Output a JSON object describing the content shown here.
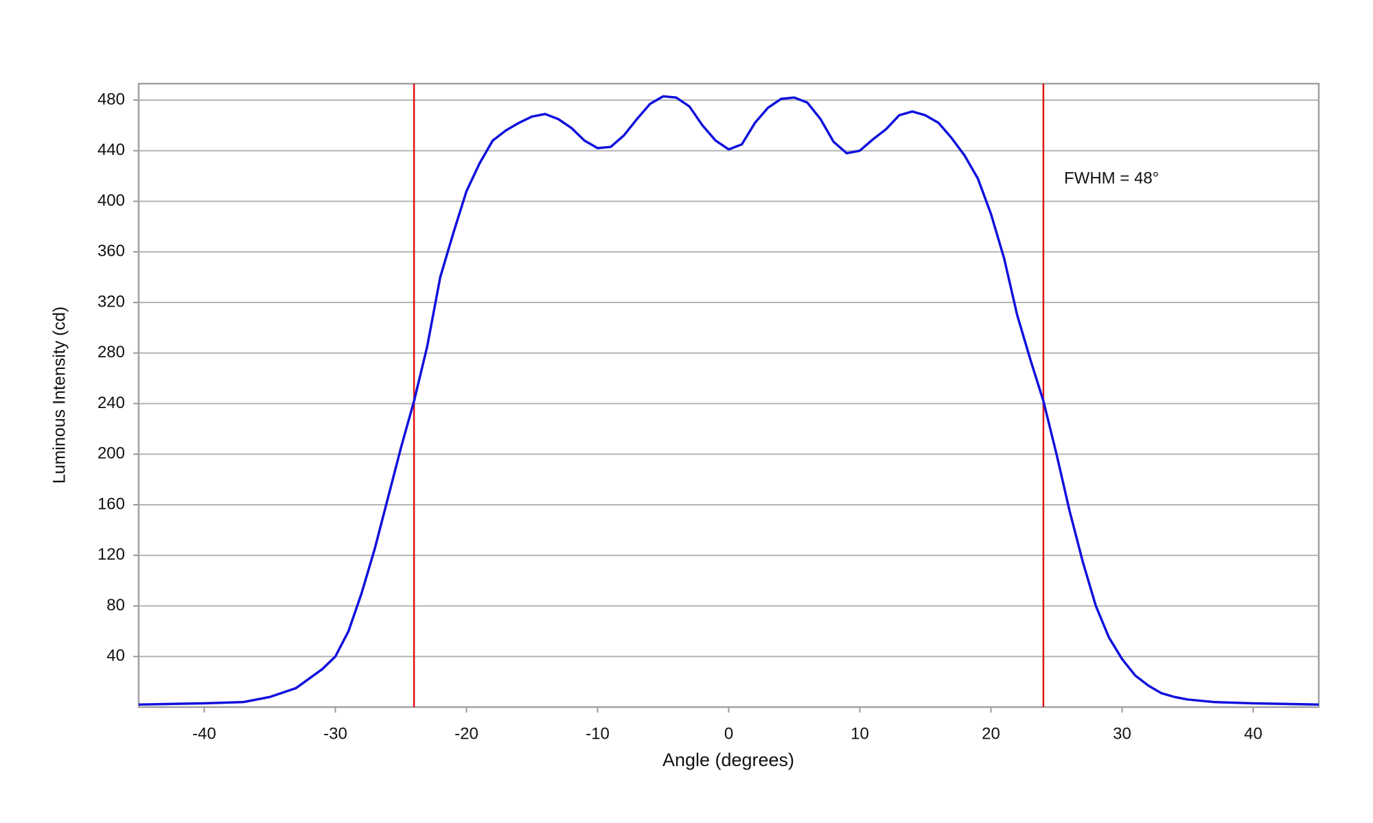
{
  "chart_data": {
    "type": "line",
    "x_label": "Angle (degrees)",
    "y_label": "Luminous Intensity (cd)",
    "x": [
      -45,
      -40,
      -37,
      -35,
      -33,
      -31,
      -30,
      -29,
      -28,
      -27,
      -26,
      -25,
      -24,
      -23,
      -22,
      -21,
      -20,
      -19,
      -18,
      -17,
      -16,
      -15,
      -14,
      -13,
      -12,
      -11,
      -10,
      -9,
      -8,
      -7,
      -6,
      -5,
      -4,
      -3,
      -2,
      -1,
      0,
      1,
      2,
      3,
      4,
      5,
      6,
      7,
      8,
      9,
      10,
      11,
      12,
      13,
      14,
      15,
      16,
      17,
      18,
      19,
      20,
      21,
      22,
      23,
      24,
      25,
      26,
      27,
      28,
      29,
      30,
      31,
      32,
      33,
      34,
      35,
      37,
      40,
      45
    ],
    "series": [
      {
        "color": "#1010dd",
        "values": [
          2,
          3,
          4,
          8,
          15,
          30,
          40,
          60,
          90,
          125,
          165,
          205,
          242,
          285,
          340,
          375,
          408,
          430,
          448,
          456,
          462,
          467,
          469,
          465,
          458,
          448,
          442,
          443,
          452,
          465,
          477,
          483,
          482,
          475,
          460,
          448,
          441,
          445,
          462,
          474,
          481,
          482,
          478,
          465,
          447,
          438,
          440,
          449,
          457,
          468,
          471,
          468,
          462,
          450,
          436,
          418,
          390,
          355,
          310,
          275,
          242,
          200,
          155,
          115,
          80,
          55,
          38,
          25,
          17,
          11,
          8,
          6,
          4,
          3,
          2
        ]
      }
    ],
    "vlines": [
      -24,
      24
    ],
    "vline_color": "#dd1111",
    "annotation": "FWHM = 48°",
    "xlim": [
      -45,
      45
    ],
    "xticks": [
      -40,
      -30,
      -20,
      -10,
      0,
      10,
      20,
      30,
      40
    ],
    "ylim": [
      0,
      493
    ],
    "yticks": [
      40,
      80,
      120,
      160,
      200,
      240,
      280,
      320,
      360,
      400,
      440,
      480
    ],
    "grid": true
  }
}
